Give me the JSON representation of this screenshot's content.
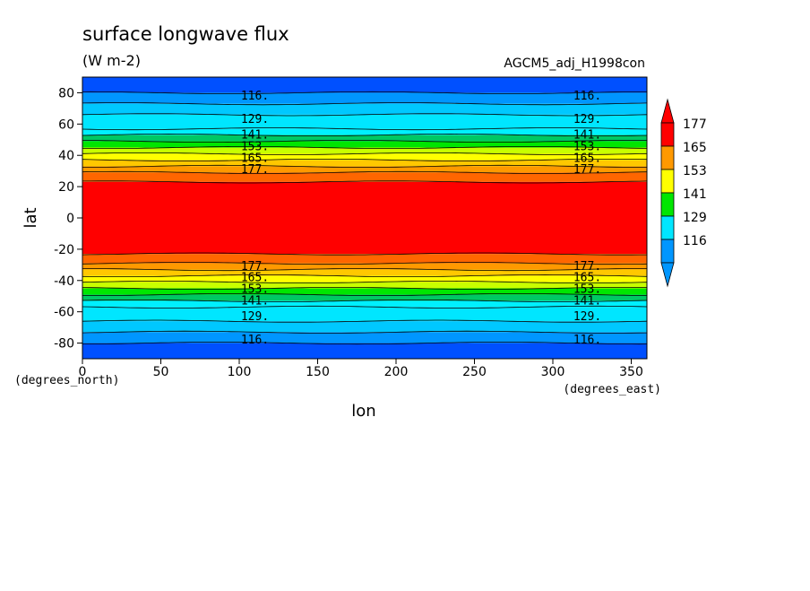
{
  "chart_data": {
    "type": "heatmap",
    "title": "surface longwave flux",
    "subtitle": "(W m-2)",
    "experiment": "AGCM5_adj_H1998con",
    "xlabel": "lon",
    "ylabel": "lat",
    "x_units": "(degrees_east)",
    "y_units": "(degrees_north)",
    "xlim": [
      0,
      360
    ],
    "ylim": [
      -90,
      90
    ],
    "x_ticks": [
      0,
      50,
      100,
      150,
      200,
      250,
      300,
      350
    ],
    "y_ticks": [
      80,
      60,
      40,
      20,
      0,
      -20,
      -40,
      -60,
      -80
    ],
    "colorbar": {
      "labels": [
        "177",
        "165",
        "153",
        "141",
        "129",
        "116"
      ],
      "colors": [
        "#ff0000",
        "#ff9900",
        "#ffff00",
        "#00e600",
        "#00e6ff",
        "#0096ff"
      ],
      "over_color": "#ff0000",
      "under_color": "#0096ff"
    },
    "colors": {
      "lt110": "#0050ff",
      "c110_116": "#0096ff",
      "c116_122": "#00c8ff",
      "c122_129": "#00e6ff",
      "c129_135": "#00f0ff",
      "c135_141": "#00c864",
      "c141_147": "#00e600",
      "c147_153": "#c8ff00",
      "c153_159": "#ffff00",
      "c159_165": "#ffc800",
      "c165_171": "#ff9900",
      "c171_177": "#ff6600",
      "gt177": "#ff0000"
    },
    "bands_north": [
      {
        "lat_top": 90,
        "lat_bottom": 80,
        "range": "<110"
      },
      {
        "lat_top": 80,
        "lat_bottom": 73,
        "range": "110-116"
      },
      {
        "lat_top": 73,
        "lat_bottom": 66,
        "range": "116-122"
      },
      {
        "lat_top": 66,
        "lat_bottom": 57,
        "range": "122-129"
      },
      {
        "lat_top": 57,
        "lat_bottom": 53,
        "range": "129-135"
      },
      {
        "lat_top": 53,
        "lat_bottom": 49,
        "range": "135-141"
      },
      {
        "lat_top": 49,
        "lat_bottom": 45,
        "range": "141-147"
      },
      {
        "lat_top": 45,
        "lat_bottom": 41,
        "range": "147-153"
      },
      {
        "lat_top": 41,
        "lat_bottom": 37,
        "range": "153-159"
      },
      {
        "lat_top": 37,
        "lat_bottom": 33,
        "range": "159-165"
      },
      {
        "lat_top": 33,
        "lat_bottom": 29,
        "range": "165-171"
      },
      {
        "lat_top": 29,
        "lat_bottom": 23,
        "range": "171-177"
      },
      {
        "lat_top": 23,
        "lat_bottom": -23,
        "range": ">177"
      }
    ],
    "bands_south": [
      {
        "lat_top": -23,
        "lat_bottom": -29,
        "range": "171-177"
      },
      {
        "lat_top": -29,
        "lat_bottom": -33,
        "range": "165-171"
      },
      {
        "lat_top": -33,
        "lat_bottom": -37,
        "range": "159-165"
      },
      {
        "lat_top": -37,
        "lat_bottom": -41,
        "range": "153-159"
      },
      {
        "lat_top": -41,
        "lat_bottom": -45,
        "range": "147-153"
      },
      {
        "lat_top": -45,
        "lat_bottom": -49,
        "range": "141-147"
      },
      {
        "lat_top": -49,
        "lat_bottom": -53,
        "range": "135-141"
      },
      {
        "lat_top": -53,
        "lat_bottom": -57,
        "range": "129-135"
      },
      {
        "lat_top": -57,
        "lat_bottom": -66,
        "range": "122-129"
      },
      {
        "lat_top": -66,
        "lat_bottom": -73,
        "range": "116-122"
      },
      {
        "lat_top": -73,
        "lat_bottom": -80,
        "range": "110-116"
      },
      {
        "lat_top": -80,
        "lat_bottom": -90,
        "range": "<110"
      }
    ],
    "contour_labels": [
      {
        "text": "116.",
        "lat": 78
      },
      {
        "text": "129.",
        "lat": 63
      },
      {
        "text": "141.",
        "lat": 53
      },
      {
        "text": "153.",
        "lat": 45.5
      },
      {
        "text": "165.",
        "lat": 38
      },
      {
        "text": "177.",
        "lat": 31
      },
      {
        "text": "177.",
        "lat": -31
      },
      {
        "text": "165.",
        "lat": -38
      },
      {
        "text": "153.",
        "lat": -45.5
      },
      {
        "text": "141.",
        "lat": -53
      },
      {
        "text": "129.",
        "lat": -63
      },
      {
        "text": "116.",
        "lat": -78
      }
    ],
    "contour_label_lons": [
      110,
      322
    ],
    "grid": false
  }
}
